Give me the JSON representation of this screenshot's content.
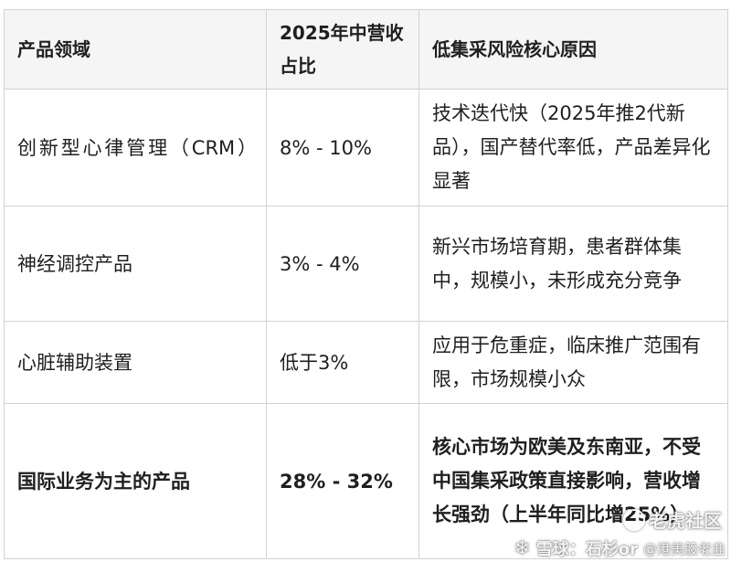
{
  "table": {
    "headers": [
      "产品领域",
      "2025年中营收占比",
      "低集采风险核心原因"
    ],
    "rows": [
      {
        "domain": "创新型心律管理（CRM）",
        "share": "8% - 10%",
        "reason": "技术迭代快（2025年推2代新品），国产替代率低，产品差异化显著"
      },
      {
        "domain": "神经调控产品",
        "share": "3% - 4%",
        "reason": "新兴市场培育期，患者群体集中，规模小，未形成充分竞争"
      },
      {
        "domain": "心脏辅助装置",
        "share": "低于3%",
        "reason": "应用于危重症，临床推广范围有限，市场规模小众"
      },
      {
        "domain": "国际业务为主的产品",
        "share": "28% - 32%",
        "reason": "核心市场为欧美及东南亚，不受中国集采政策直接影响，营收增长强劲（上半年同比增25%）"
      }
    ]
  },
  "watermark": {
    "brand": "老虎社区",
    "author": "雪球：石杉or",
    "handle": "@港美股老韭"
  }
}
